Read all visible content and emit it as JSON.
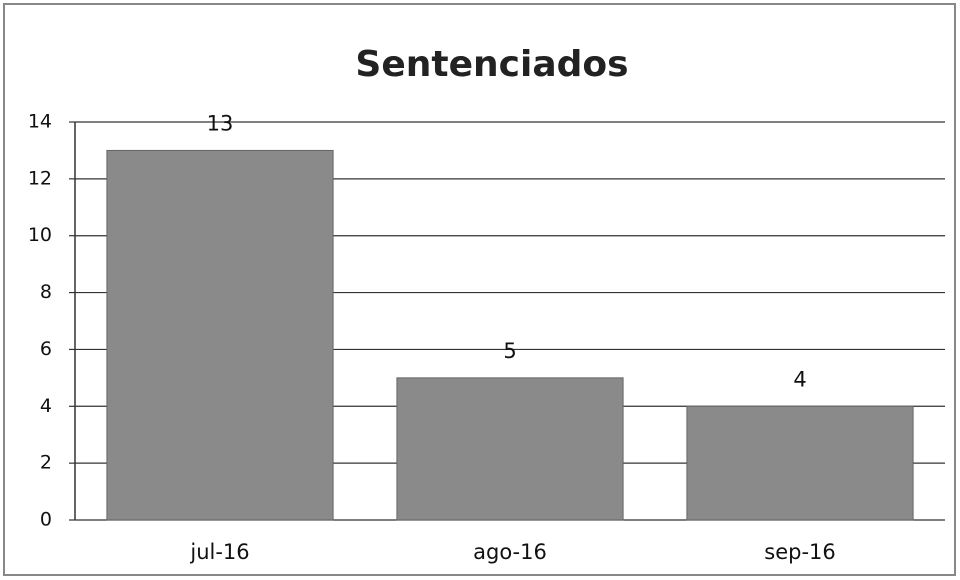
{
  "chart_data": {
    "type": "bar",
    "title": "Sentenciados",
    "categories": [
      "jul-16",
      "ago-16",
      "sep-16"
    ],
    "values": [
      13,
      5,
      4
    ],
    "color": "#8a8a8a",
    "ylim": [
      0,
      14
    ],
    "yticks": [
      0,
      2,
      4,
      6,
      8,
      10,
      12,
      14
    ],
    "grid": true
  }
}
